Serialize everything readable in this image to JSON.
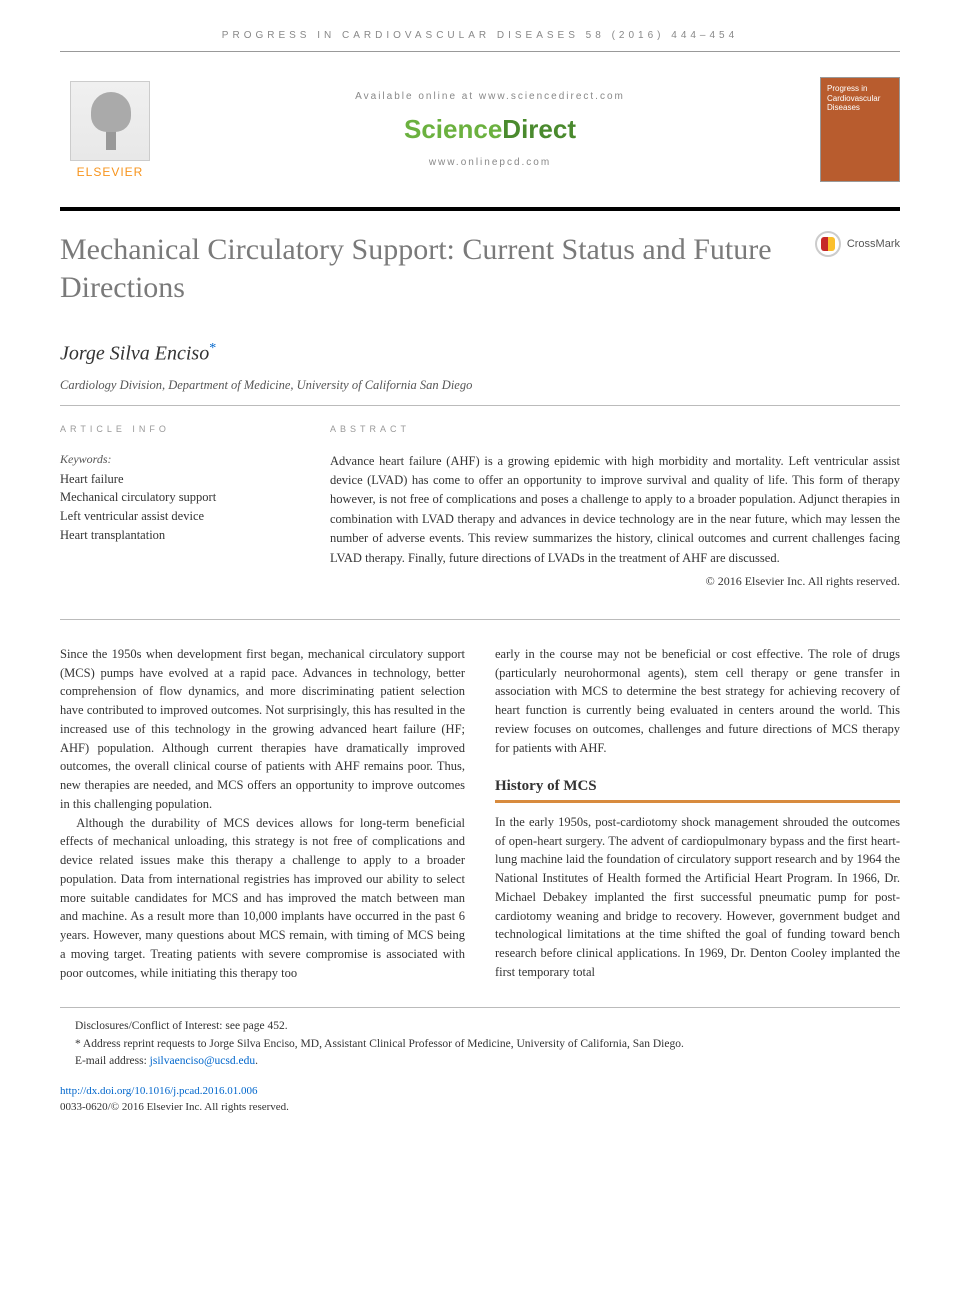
{
  "running_header": "PROGRESS IN CARDIOVASCULAR DISEASES 58 (2016) 444–454",
  "masthead": {
    "elsevier": "ELSEVIER",
    "available": "Available online at www.sciencedirect.com",
    "sd_science": "Science",
    "sd_direct": "Direct",
    "journal_url": "www.onlinepcd.com",
    "cover_title": "Progress in Cardiovascular Diseases"
  },
  "title": "Mechanical Circulatory Support: Current Status and Future Directions",
  "crossmark": "CrossMark",
  "author": "Jorge Silva Enciso",
  "author_mark": "*",
  "affiliation": "Cardiology Division, Department of Medicine, University of California San Diego",
  "article_info_label": "ARTICLE INFO",
  "abstract_label": "ABSTRACT",
  "keywords_label": "Keywords:",
  "keywords": [
    "Heart failure",
    "Mechanical circulatory support",
    "Left ventricular assist device",
    "Heart transplantation"
  ],
  "abstract": "Advance heart failure (AHF) is a growing epidemic with high morbidity and mortality. Left ventricular assist device (LVAD) has come to offer an opportunity to improve survival and quality of life. This form of therapy however, is not free of complications and poses a challenge to apply to a broader population. Adjunct therapies in combination with LVAD therapy and advances in device technology are in the near future, which may lessen the number of adverse events. This review summarizes the history, clinical outcomes and current challenges facing LVAD therapy. Finally, future directions of LVADs in the treatment of AHF are discussed.",
  "copyright": "© 2016 Elsevier Inc. All rights reserved.",
  "body": {
    "p1": "Since the 1950s when development first began, mechanical circulatory support (MCS) pumps have evolved at a rapid pace. Advances in technology, better comprehension of flow dynamics, and more discriminating patient selection have contributed to improved outcomes. Not surprisingly, this has resulted in the increased use of this technology in the growing advanced heart failure (HF; AHF) population. Although current therapies have dramatically improved outcomes, the overall clinical course of patients with AHF remains poor. Thus, new therapies are needed, and MCS offers an opportunity to improve outcomes in this challenging population.",
    "p2": "Although the durability of MCS devices allows for long-term beneficial effects of mechanical unloading, this strategy is not free of complications and device related issues make this therapy a challenge to apply to a broader population. Data from international registries has improved our ability to select more suitable candidates for MCS and has improved the match between man and machine. As a result more than 10,000 implants have occurred in the past 6 years. However, many questions about MCS remain, with timing of MCS being a moving target. Treating patients with severe compromise is associated with poor outcomes, while initiating this therapy too",
    "p3": "early in the course may not be beneficial or cost effective. The role of drugs (particularly neurohormonal agents), stem cell therapy or gene transfer in association with MCS to determine the best strategy for achieving recovery of heart function is currently being evaluated in centers around the world. This review focuses on outcomes, challenges and future directions of MCS therapy for patients with AHF.",
    "history_heading": "History of MCS",
    "p4": "In the early 1950s, post-cardiotomy shock management shrouded the outcomes of open-heart surgery. The advent of cardiopulmonary bypass and the first heart-lung machine laid the foundation of circulatory support research and by 1964 the National Institutes of Health formed the Artificial Heart Program. In 1966, Dr. Michael Debakey implanted the first successful pneumatic pump for post-cardiotomy weaning and bridge to recovery. However, government budget and technological limitations at the time shifted the goal of funding toward bench research before clinical applications. In 1969, Dr. Denton Cooley implanted the first temporary total"
  },
  "footnotes": {
    "disclosure": "Disclosures/Conflict of Interest: see page 452.",
    "reprint": "* Address reprint requests to Jorge Silva Enciso, MD, Assistant Clinical Professor of Medicine, University of California, San Diego.",
    "email_label": "E-mail address: ",
    "email": "jsilvaenciso@ucsd.edu",
    "doi": "http://dx.doi.org/10.1016/j.pcad.2016.01.006",
    "issn": "0033-0620/© 2016 Elsevier Inc. All rights reserved."
  }
}
